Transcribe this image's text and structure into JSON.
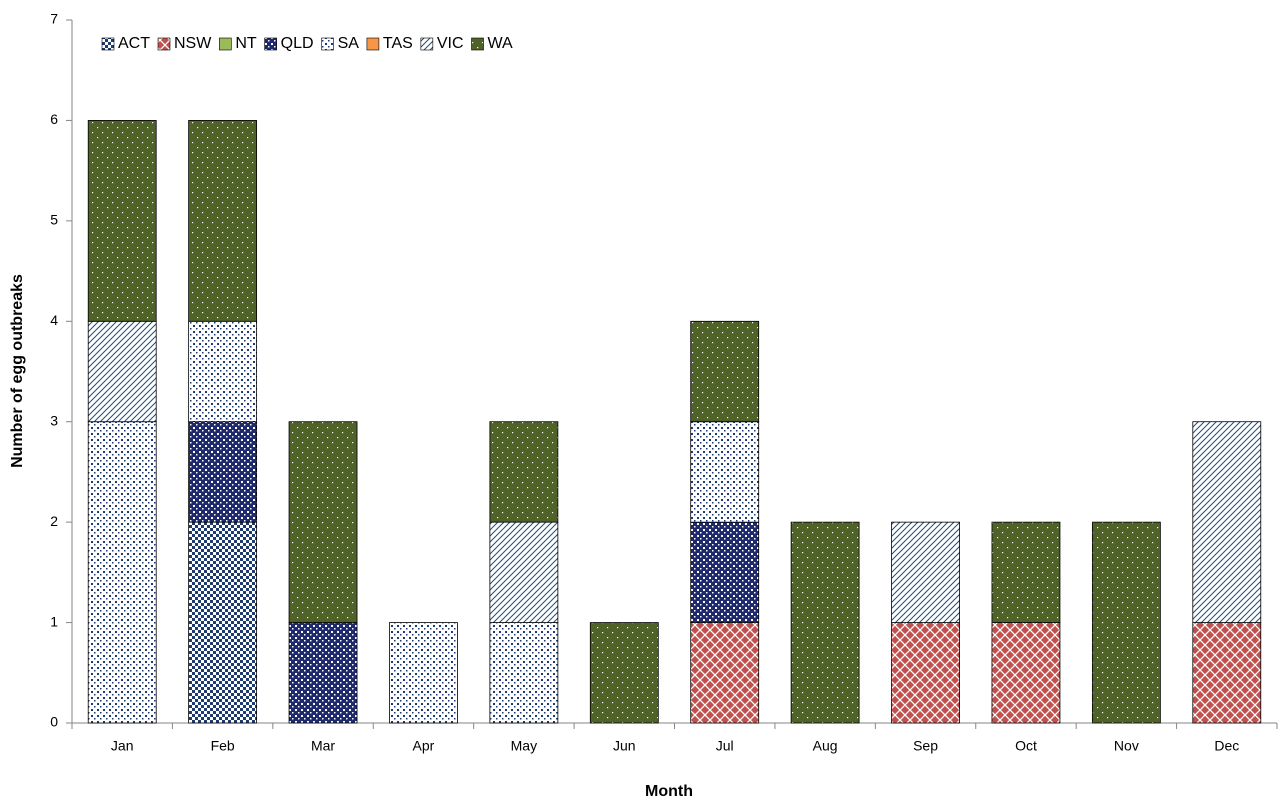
{
  "chart_data": {
    "type": "stacked-bar",
    "x_label": "Month",
    "y_label": "Number of egg outbreaks",
    "categories": [
      "Jan",
      "Feb",
      "Mar",
      "Apr",
      "May",
      "Jun",
      "Jul",
      "Aug",
      "Sep",
      "Oct",
      "Nov",
      "Dec"
    ],
    "series": [
      {
        "name": "ACT",
        "color": "#1f3a6e",
        "values": [
          0,
          2,
          0,
          0,
          0,
          0,
          0,
          0,
          0,
          0,
          0,
          0
        ]
      },
      {
        "name": "NSW",
        "color": "#c0504d",
        "values": [
          0,
          0,
          0,
          0,
          0,
          0,
          1,
          0,
          1,
          1,
          0,
          1
        ]
      },
      {
        "name": "NT",
        "color": "#9bbb59",
        "values": [
          0,
          0,
          0,
          0,
          0,
          0,
          0,
          0,
          0,
          0,
          0,
          0
        ]
      },
      {
        "name": "QLD",
        "color": "#1f2a6e",
        "values": [
          0,
          1,
          1,
          0,
          0,
          0,
          1,
          0,
          0,
          0,
          0,
          0
        ]
      },
      {
        "name": "SA",
        "color": "#1f3a6e",
        "values": [
          3,
          1,
          0,
          1,
          1,
          0,
          1,
          0,
          0,
          0,
          0,
          0
        ]
      },
      {
        "name": "TAS",
        "color": "#f79646",
        "values": [
          0,
          0,
          0,
          0,
          0,
          0,
          0,
          0,
          0,
          0,
          0,
          0
        ]
      },
      {
        "name": "VIC",
        "color": "#1f4e79",
        "values": [
          1,
          0,
          0,
          0,
          1,
          0,
          0,
          0,
          1,
          0,
          0,
          2
        ]
      },
      {
        "name": "WA",
        "color": "#4f6228",
        "values": [
          2,
          2,
          2,
          0,
          1,
          1,
          1,
          2,
          0,
          1,
          2,
          0
        ]
      }
    ],
    "ylim": [
      0,
      7
    ],
    "yticks": [
      0,
      1,
      2,
      3,
      4,
      5,
      6,
      7
    ],
    "grid": false,
    "legend": "top-left"
  }
}
